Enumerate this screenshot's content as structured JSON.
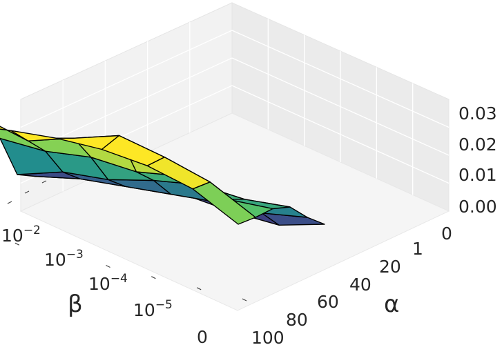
{
  "chart_data": {
    "type": "surface",
    "title": "",
    "zlabel": "",
    "xlabel": "α",
    "ylabel": "β",
    "alpha_ticks": [
      "0",
      "1",
      "20",
      "40",
      "60",
      "80",
      "100"
    ],
    "beta_ticks": [
      "10^-2",
      "10^-3",
      "10^-4",
      "10^-5",
      "0"
    ],
    "z_ticks": [
      "0.00",
      "0.01",
      "0.02",
      "0.03"
    ],
    "zlim": [
      0,
      0.03
    ],
    "grid": true,
    "colormap": "viridis",
    "colormap_stops": [
      "#440154",
      "#3b528b",
      "#21908d",
      "#5dc963",
      "#fde725"
    ],
    "z_values": [
      [
        0.0025,
        0.0035,
        0.007,
        0.0205,
        0.0295,
        0.0305
      ],
      [
        0.003,
        0.006,
        0.011,
        0.02,
        0.026,
        0.032
      ],
      [
        0.004,
        0.007,
        0.012,
        0.0215,
        0.03,
        0.033
      ],
      [
        0.0045,
        0.008,
        0.015,
        0.0205,
        0.034,
        0.033
      ],
      [
        0.003,
        0.009,
        0.017,
        0.0225,
        0.031,
        0.0315
      ],
      [
        0.0025,
        0.009,
        0.016,
        0.019,
        0.027,
        0.028
      ],
      [
        0.006,
        0.011,
        0.017,
        0.0195,
        0.02,
        0.021
      ]
    ]
  }
}
